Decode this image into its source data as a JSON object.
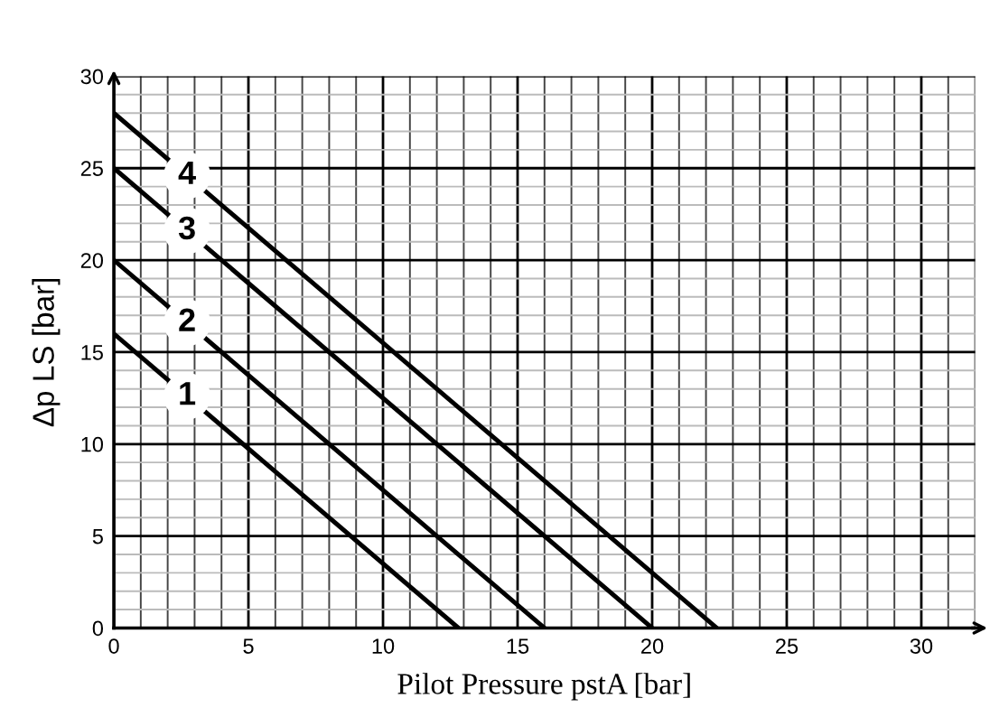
{
  "chart_data": {
    "type": "line",
    "xlabel": "Pilot Pressure pstA [bar]",
    "ylabel": "Δp LS [bar]",
    "series": [
      {
        "name": "1",
        "color": "#000000",
        "x": [
          0,
          12.8
        ],
        "values": [
          16,
          0
        ]
      },
      {
        "name": "2",
        "color": "#000000",
        "x": [
          0,
          16
        ],
        "values": [
          20,
          0
        ]
      },
      {
        "name": "3",
        "color": "#000000",
        "x": [
          0,
          20
        ],
        "values": [
          25,
          0
        ]
      },
      {
        "name": "4",
        "color": "#000000",
        "x": [
          0,
          22.4
        ],
        "values": [
          28,
          0
        ]
      }
    ],
    "xlim": [
      0,
      32
    ],
    "ylim": [
      0,
      30
    ],
    "xticks": [
      0,
      5,
      10,
      15,
      20,
      25,
      30
    ],
    "yticks": [
      0,
      5,
      10,
      15,
      20,
      25,
      30
    ],
    "grid": true,
    "legend": false,
    "marker": "none",
    "line_style": "solid"
  }
}
